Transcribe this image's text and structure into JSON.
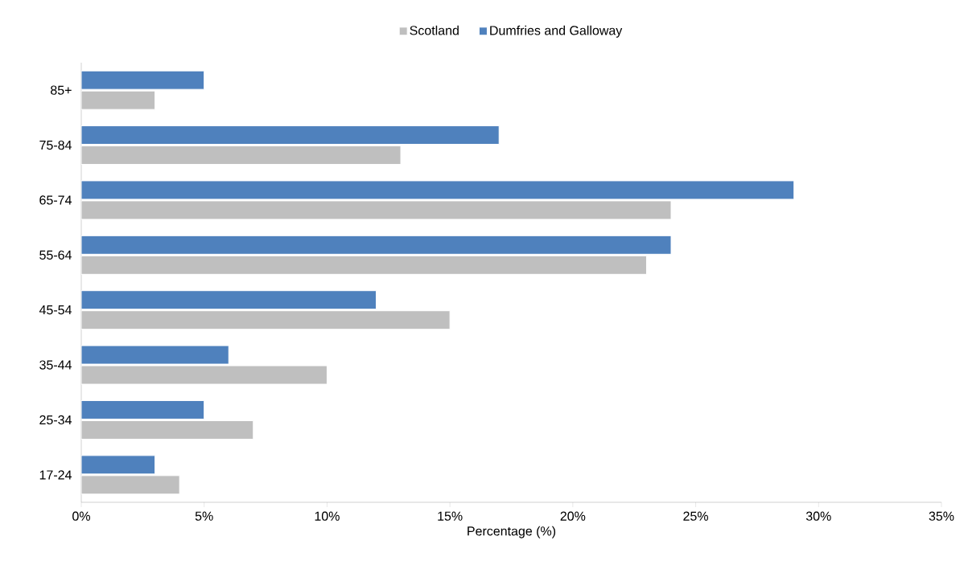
{
  "chart_data": {
    "type": "bar",
    "orientation": "horizontal",
    "xlabel": "Percentage (%)",
    "categories": [
      "85+",
      "75-84",
      "65-74",
      "55-64",
      "45-54",
      "35-44",
      "25-34",
      "17-24"
    ],
    "series": [
      {
        "name": "Scotland",
        "color": "#bfbfbf",
        "values": [
          3,
          13,
          24,
          23,
          15,
          10,
          7,
          4
        ]
      },
      {
        "name": "Dumfries and Galloway",
        "color": "#4f81bd",
        "values": [
          5,
          17,
          29,
          24,
          12,
          6,
          5,
          3
        ]
      }
    ],
    "xlim": [
      0,
      35
    ],
    "xticks": [
      {
        "value": 0,
        "label": "0%"
      },
      {
        "value": 5,
        "label": "5%"
      },
      {
        "value": 10,
        "label": "10%"
      },
      {
        "value": 15,
        "label": "15%"
      },
      {
        "value": 20,
        "label": "20%"
      },
      {
        "value": 25,
        "label": "25%"
      },
      {
        "value": 30,
        "label": "30%"
      },
      {
        "value": 35,
        "label": "35%"
      }
    ],
    "legend": "top",
    "grid": false
  }
}
